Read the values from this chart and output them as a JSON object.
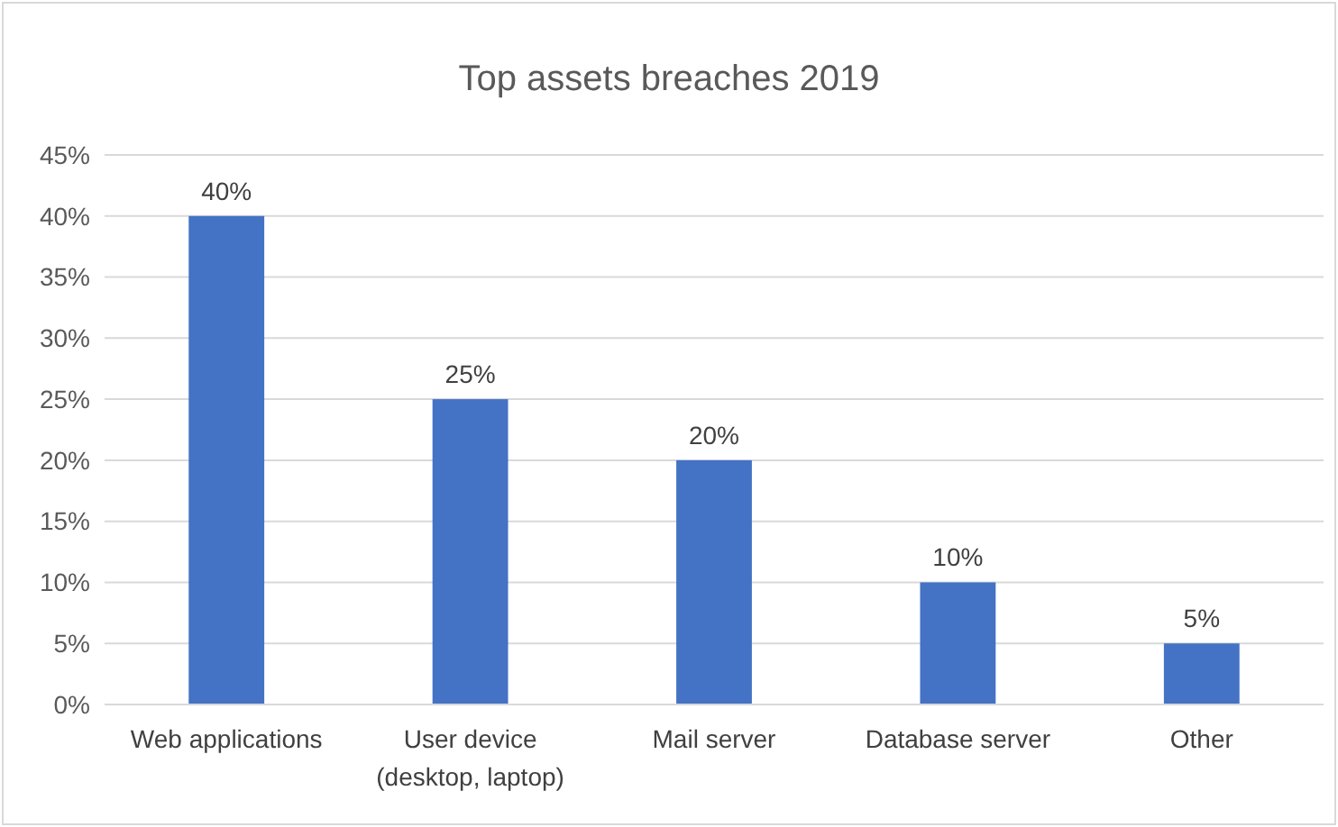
{
  "chart_data": {
    "type": "bar",
    "title": "Top assets breaches 2019",
    "categories": [
      "Web applications",
      "User device\n(desktop, laptop)",
      "Mail server",
      "Database server",
      "Other"
    ],
    "values": [
      40,
      25,
      20,
      10,
      5
    ],
    "color": "#4472c4",
    "value_labels": [
      "40%",
      "25%",
      "20%",
      "10%",
      "5%"
    ],
    "ylim": [
      0,
      45
    ],
    "yticks": [
      {
        "value": 0,
        "label": "0%"
      },
      {
        "value": 5,
        "label": "5%"
      },
      {
        "value": 10,
        "label": "10%"
      },
      {
        "value": 15,
        "label": "15%"
      },
      {
        "value": 20,
        "label": "20%"
      },
      {
        "value": 25,
        "label": "25%"
      },
      {
        "value": 30,
        "label": "30%"
      },
      {
        "value": 35,
        "label": "35%"
      },
      {
        "value": 40,
        "label": "40%"
      },
      {
        "value": 45,
        "label": "45%"
      }
    ],
    "grid": "y"
  }
}
